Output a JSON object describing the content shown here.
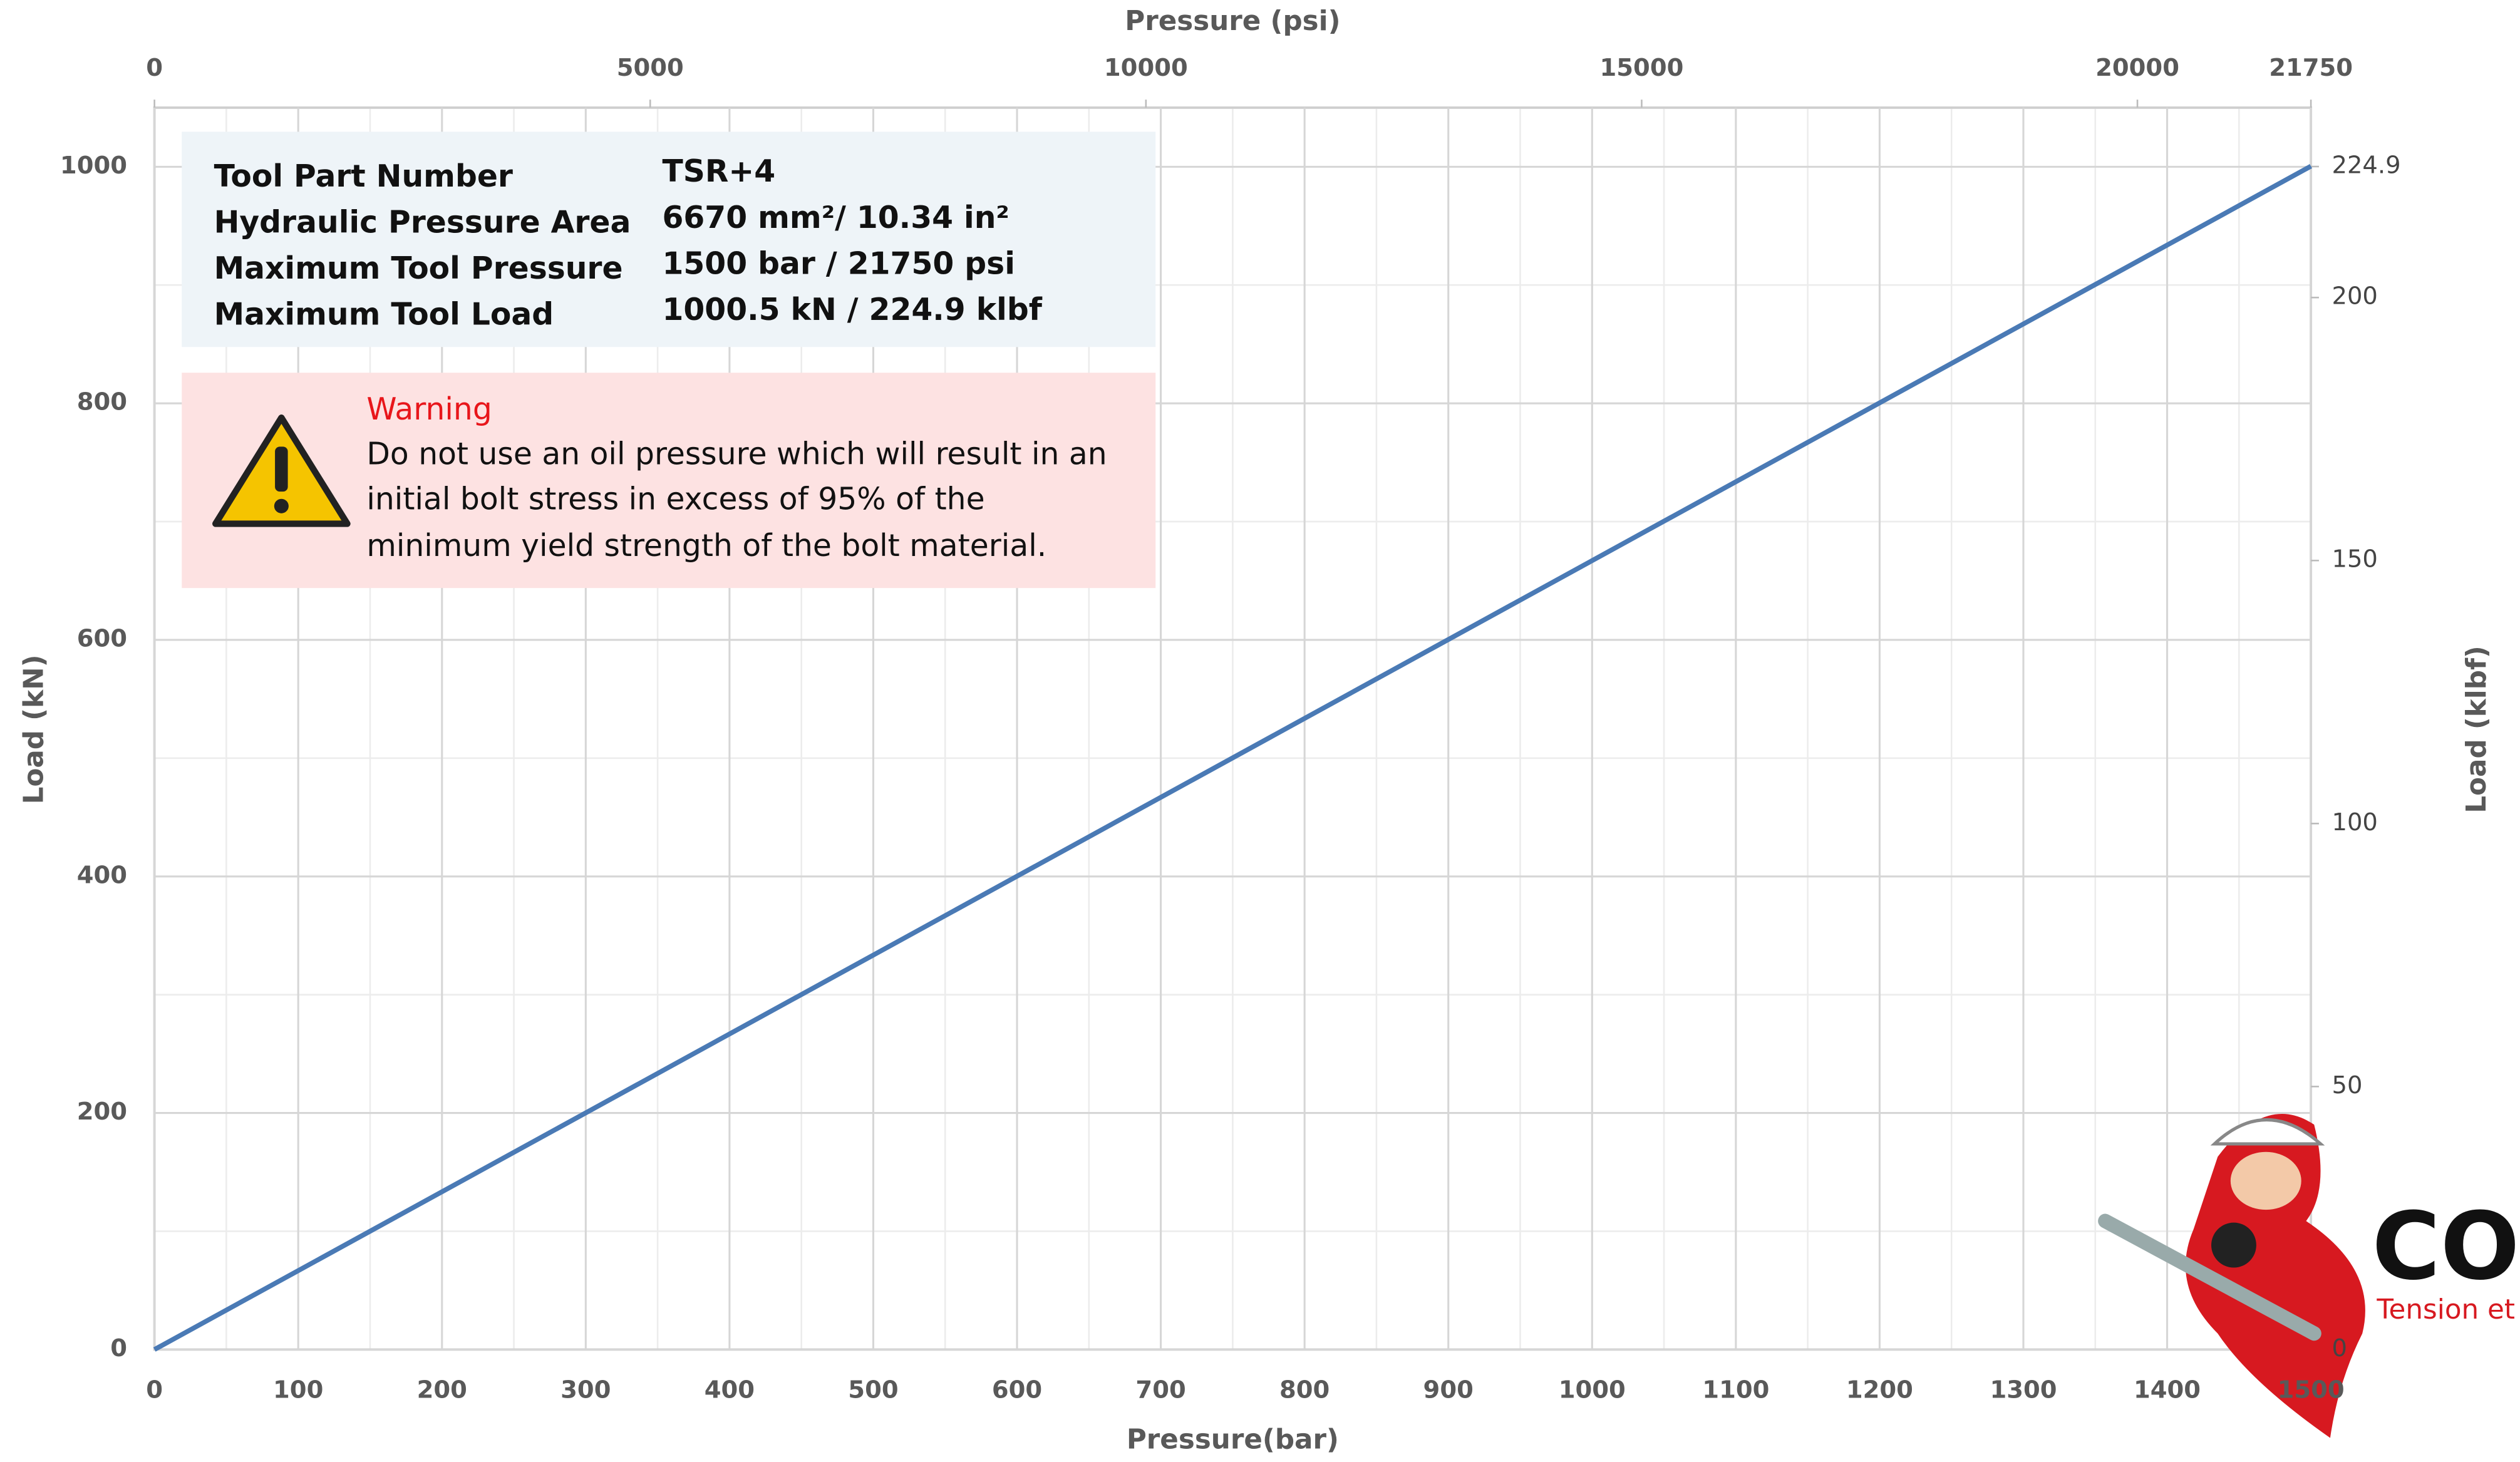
{
  "chart_data": {
    "type": "line",
    "x_title": "Pressure(bar)",
    "x2_title": "Pressure (psi)",
    "y_title": "Load (kN)",
    "y2_title": "Load (klbf)",
    "x": [
      0,
      1500
    ],
    "values": [
      0,
      1000.5
    ],
    "color": "#4a7ab5",
    "xlim": [
      0,
      1500
    ],
    "xticks": [
      0,
      100,
      200,
      300,
      400,
      500,
      600,
      700,
      800,
      900,
      1000,
      1100,
      1200,
      1300,
      1400,
      1500
    ],
    "x2lim": [
      0,
      21750
    ],
    "x2ticks": [
      0,
      5000,
      10000,
      15000,
      20000,
      21750
    ],
    "ylim": [
      0,
      1050
    ],
    "yticks": [
      0,
      200,
      400,
      600,
      800,
      1000
    ],
    "y2lim": [
      0,
      236.1
    ],
    "y2ticks": [
      0,
      50,
      100,
      150,
      200,
      224.9
    ],
    "grid": true,
    "info": [
      [
        "Tool Part Number",
        "TSR+4"
      ],
      [
        "Hydraulic Pressure Area",
        "6670 mm²/ 10.34 in²"
      ],
      [
        "Maximum Tool Pressure",
        "1500 bar / 21750 psi"
      ],
      [
        "Maximum Tool Load",
        "1000.5 kN / 224.9 klbf"
      ]
    ],
    "warning": {
      "title": "Warning",
      "lines": [
        "Do not use an oil pressure which will result in an",
        "initial bolt stress in excess of 95% of the",
        "minimum yield strength of the bolt material."
      ]
    },
    "logo": {
      "name": "CO",
      "tagline": "Tension et"
    }
  }
}
